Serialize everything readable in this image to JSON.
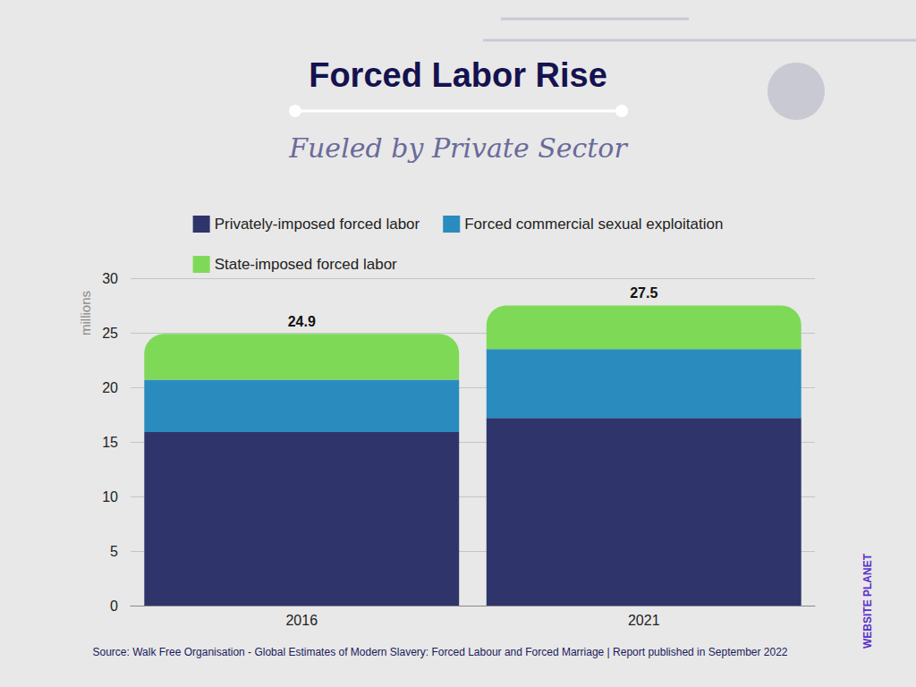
{
  "chart_data": {
    "type": "bar",
    "title": "Forced Labor Rise",
    "subtitle": "Fueled by Private Sector",
    "y_label": "millions",
    "categories": [
      "2016",
      "2021"
    ],
    "series": [
      {
        "name": "Privately-imposed forced labor",
        "color": "#2f346b",
        "values": [
          15.9,
          17.2
        ]
      },
      {
        "name": "Forced commercial sexual exploitation",
        "color": "#2a8bbf",
        "values": [
          4.8,
          6.3
        ]
      },
      {
        "name": "State-imposed forced labor",
        "color": "#7ed957",
        "values": [
          4.2,
          4.0
        ]
      }
    ],
    "totals": [
      24.9,
      27.5
    ],
    "stacked": true,
    "ylim": [
      0,
      30
    ],
    "yticks": [
      0,
      5,
      10,
      15,
      20,
      25,
      30
    ],
    "grid": true,
    "legend": "top",
    "annotations": [
      "Source: Walk Free Organisation - Global Estimates of Modern Slavery: Forced Labour and Forced Marriage | Report published in September 2022",
      "WEBSITE PLANET"
    ]
  }
}
